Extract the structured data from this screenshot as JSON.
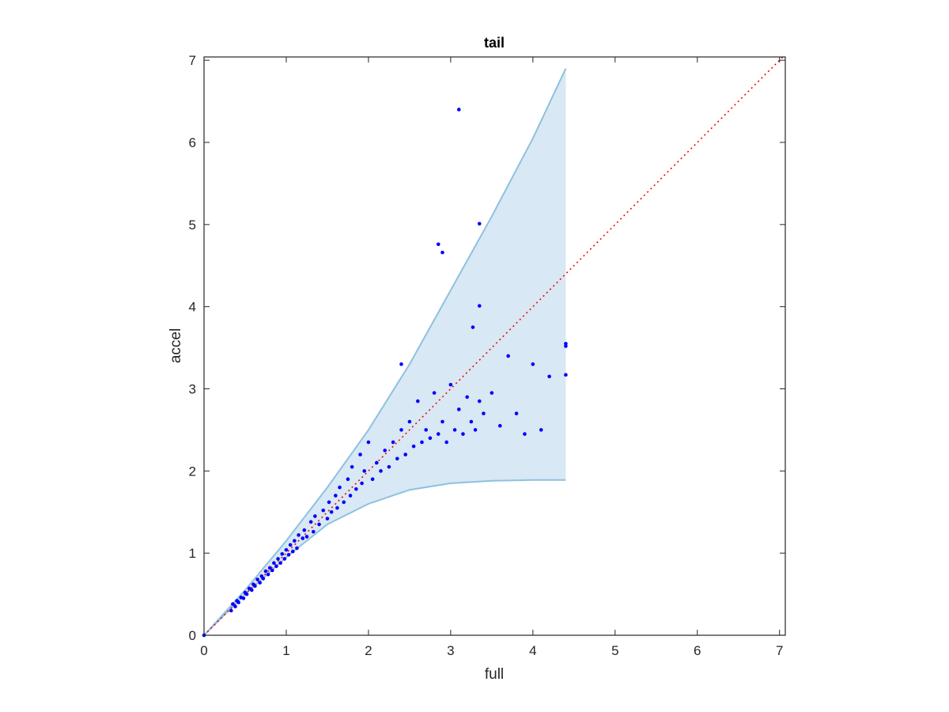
{
  "chart_data": {
    "type": "scatter",
    "title": "tail",
    "xlabel": "full",
    "ylabel": "accel",
    "xlim": [
      0,
      7.07
    ],
    "ylim": [
      0,
      7.04
    ],
    "xticks": [
      0,
      1,
      2,
      3,
      4,
      5,
      6,
      7
    ],
    "yticks": [
      0,
      1,
      2,
      3,
      4,
      5,
      6,
      7
    ],
    "band": {
      "x": [
        0,
        0.5,
        1,
        1.5,
        2,
        2.5,
        3,
        3.5,
        4,
        4.4
      ],
      "upper": [
        0,
        0.55,
        1.15,
        1.8,
        2.5,
        3.3,
        4.2,
        5.1,
        6.05,
        6.9
      ],
      "lower": [
        0,
        0.5,
        0.95,
        1.35,
        1.6,
        1.77,
        1.85,
        1.88,
        1.89,
        1.89
      ],
      "color": "#8ec1e0",
      "fill": "#d8e8f4"
    },
    "reference_line": {
      "x": [
        0,
        7.04
      ],
      "y": [
        0,
        7.04
      ],
      "color": "#ff0000"
    },
    "points": {
      "color": "#0000ff",
      "x": [
        0,
        0.33,
        0.35,
        0.38,
        0.4,
        0.42,
        0.45,
        0.48,
        0.5,
        0.52,
        0.55,
        0.58,
        0.6,
        0.62,
        0.65,
        0.68,
        0.7,
        0.72,
        0.75,
        0.78,
        0.8,
        0.83,
        0.85,
        0.88,
        0.9,
        0.93,
        0.95,
        0.98,
        1.0,
        1.03,
        1.05,
        1.08,
        1.1,
        1.13,
        1.15,
        1.2,
        1.22,
        1.25,
        1.3,
        1.33,
        1.35,
        1.4,
        1.45,
        1.5,
        1.52,
        1.55,
        1.6,
        1.62,
        1.65,
        1.7,
        1.75,
        1.78,
        1.8,
        1.85,
        1.9,
        1.92,
        1.95,
        2.0,
        2.05,
        2.1,
        2.15,
        2.2,
        2.25,
        2.3,
        2.35,
        2.4,
        2.45,
        2.5,
        2.55,
        2.6,
        2.65,
        2.7,
        2.75,
        2.8,
        2.85,
        2.9,
        2.95,
        3.0,
        3.05,
        3.1,
        3.15,
        3.2,
        3.25,
        3.3,
        3.35,
        3.4,
        3.5,
        3.6,
        3.7,
        3.8,
        3.9,
        4.0,
        4.1,
        4.2,
        4.4,
        4.4,
        4.4,
        3.1,
        3.35,
        2.85,
        2.9,
        3.35,
        3.27,
        2.4
      ],
      "y": [
        0,
        0.3,
        0.38,
        0.35,
        0.42,
        0.4,
        0.46,
        0.45,
        0.52,
        0.5,
        0.57,
        0.55,
        0.62,
        0.6,
        0.68,
        0.64,
        0.72,
        0.69,
        0.78,
        0.74,
        0.82,
        0.79,
        0.88,
        0.84,
        0.93,
        0.88,
        0.99,
        0.93,
        1.04,
        0.98,
        1.1,
        1.02,
        1.15,
        1.06,
        1.22,
        1.18,
        1.28,
        1.2,
        1.38,
        1.26,
        1.45,
        1.35,
        1.52,
        1.42,
        1.62,
        1.5,
        1.7,
        1.55,
        1.8,
        1.62,
        1.9,
        1.7,
        2.05,
        1.78,
        2.2,
        1.85,
        2.0,
        2.35,
        1.9,
        2.1,
        2.0,
        2.25,
        2.05,
        2.35,
        2.15,
        2.5,
        2.2,
        2.6,
        2.3,
        2.85,
        2.35,
        2.5,
        2.4,
        2.95,
        2.45,
        2.6,
        2.35,
        3.05,
        2.5,
        2.75,
        2.45,
        2.9,
        2.6,
        2.5,
        2.85,
        2.7,
        2.95,
        2.55,
        3.4,
        2.7,
        2.45,
        3.3,
        2.5,
        3.15,
        3.55,
        3.52,
        3.17,
        6.4,
        5.01,
        4.76,
        4.66,
        4.01,
        3.75,
        3.3
      ]
    }
  }
}
